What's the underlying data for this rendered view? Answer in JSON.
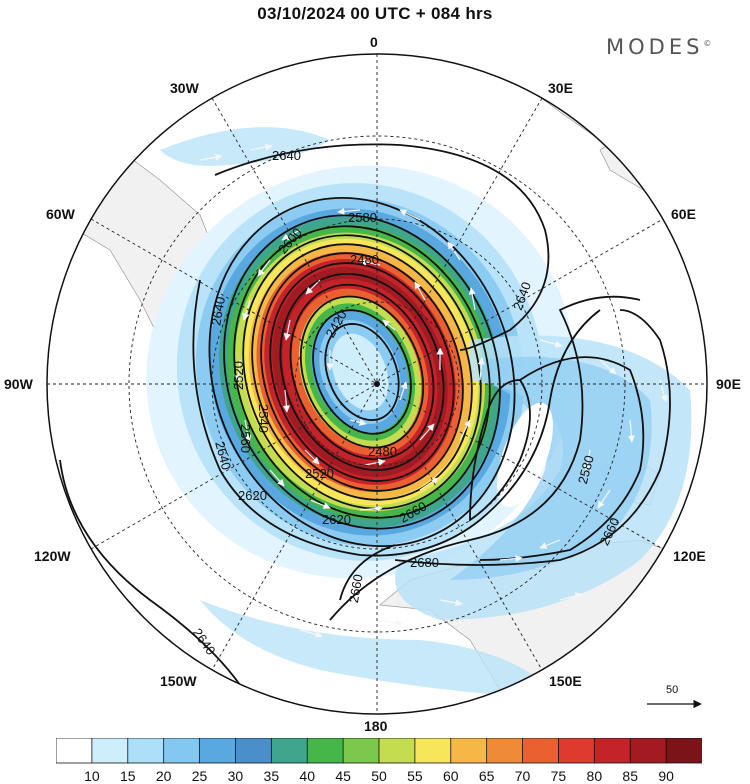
{
  "title": "03/10/2024  00 UTC  + 084 hrs",
  "brand": "MODES",
  "brand_mark": "©",
  "longitude_labels": {
    "n0": "0",
    "w30": "30W",
    "e30": "30E",
    "w60": "60W",
    "e60": "60E",
    "w90": "90W",
    "e90": "90E",
    "w120": "120W",
    "e120": "120E",
    "w150": "150W",
    "e150": "150E",
    "s180": "180"
  },
  "contours": {
    "c2420": "2420",
    "c2480a": "2480",
    "c2480b": "2480",
    "c2520a": "2520",
    "c2520b": "2520",
    "c2540": "2540",
    "c2560": "2560",
    "c2580": "2580",
    "c2600": "2600",
    "c2620a": "2620",
    "c2620b": "2620",
    "c2640a": "2640",
    "c2640b": "2640",
    "c2640c": "2640",
    "c2640d": "2640",
    "c2660a": "2660",
    "c2660b": "2660",
    "c2660c": "2660",
    "c2680": "2680",
    "c2580e": "2580"
  },
  "wind_reference": {
    "value": "50"
  },
  "colorbar": {
    "labels": [
      "10",
      "15",
      "20",
      "25",
      "30",
      "35",
      "40",
      "45",
      "50",
      "55",
      "60",
      "65",
      "70",
      "75",
      "80",
      "85",
      "90"
    ],
    "colors": [
      "#ffffff",
      "#cfeefc",
      "#ade0f8",
      "#84c8f0",
      "#5aa8e0",
      "#4b8fc8",
      "#3fa58c",
      "#46b64a",
      "#7cc84a",
      "#c4dc50",
      "#f8e65a",
      "#f5b847",
      "#ef8a37",
      "#ea6030",
      "#df3a2e",
      "#c4232a",
      "#a21b22",
      "#7b1419"
    ]
  }
}
